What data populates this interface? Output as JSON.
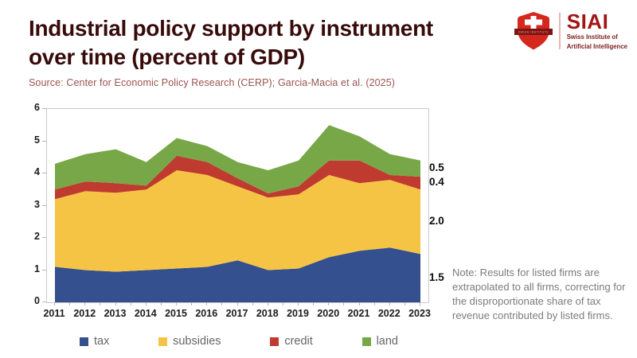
{
  "header": {
    "title_line1": "Industrial policy support by instrument",
    "title_line2": "over time (percent of GDP)",
    "source": "Source: Center for Economic Policy Research (CERP); Garcia-Macia et al. (2025)"
  },
  "logo": {
    "acronym": "SIAI",
    "subtitle_line1": "Swiss Institute of",
    "subtitle_line2": "Artificial Intelligence",
    "banner_text": "SWISS INSTITUTE",
    "shield_red": "#D4281E",
    "banner_red": "#7E1511",
    "text_red": "#A31515"
  },
  "note": "Note: Results for listed firms are extrapolated to all firms, correcting for the disproportionate share of tax revenue contributed by listed firms.",
  "chart_data": {
    "type": "area",
    "stacked": true,
    "title": "Industrial policy support by instrument over time (percent of GDP)",
    "xlabel": "",
    "ylabel": "",
    "grid": false,
    "legend_position": "bottom",
    "ylim": [
      0,
      6
    ],
    "ytick_step": 1,
    "categories": [
      2011,
      2012,
      2013,
      2014,
      2015,
      2016,
      2017,
      2018,
      2019,
      2020,
      2021,
      2022,
      2023
    ],
    "series": [
      {
        "name": "tax",
        "color": "#35508E",
        "values": [
          1.1,
          1.0,
          0.95,
          1.0,
          1.05,
          1.1,
          1.3,
          1.0,
          1.05,
          1.4,
          1.6,
          1.7,
          1.5
        ]
      },
      {
        "name": "subsidies",
        "color": "#F6C445",
        "values": [
          2.1,
          2.45,
          2.45,
          2.5,
          3.05,
          2.85,
          2.3,
          2.25,
          2.3,
          2.55,
          2.1,
          2.1,
          2.0
        ]
      },
      {
        "name": "credit",
        "color": "#BF3A2F",
        "values": [
          0.3,
          0.3,
          0.3,
          0.12,
          0.45,
          0.4,
          0.25,
          0.13,
          0.25,
          0.45,
          0.7,
          0.15,
          0.4
        ]
      },
      {
        "name": "land",
        "color": "#78A748",
        "values": [
          0.8,
          0.85,
          1.05,
          0.73,
          0.55,
          0.5,
          0.5,
          0.72,
          0.8,
          1.1,
          0.75,
          0.65,
          0.5
        ]
      }
    ],
    "end_labels": [
      {
        "series": "land",
        "label": "0.5"
      },
      {
        "series": "credit",
        "label": "0.4"
      },
      {
        "series": "subsidies",
        "label": "2.0"
      },
      {
        "series": "tax",
        "label": "1.5"
      }
    ]
  }
}
